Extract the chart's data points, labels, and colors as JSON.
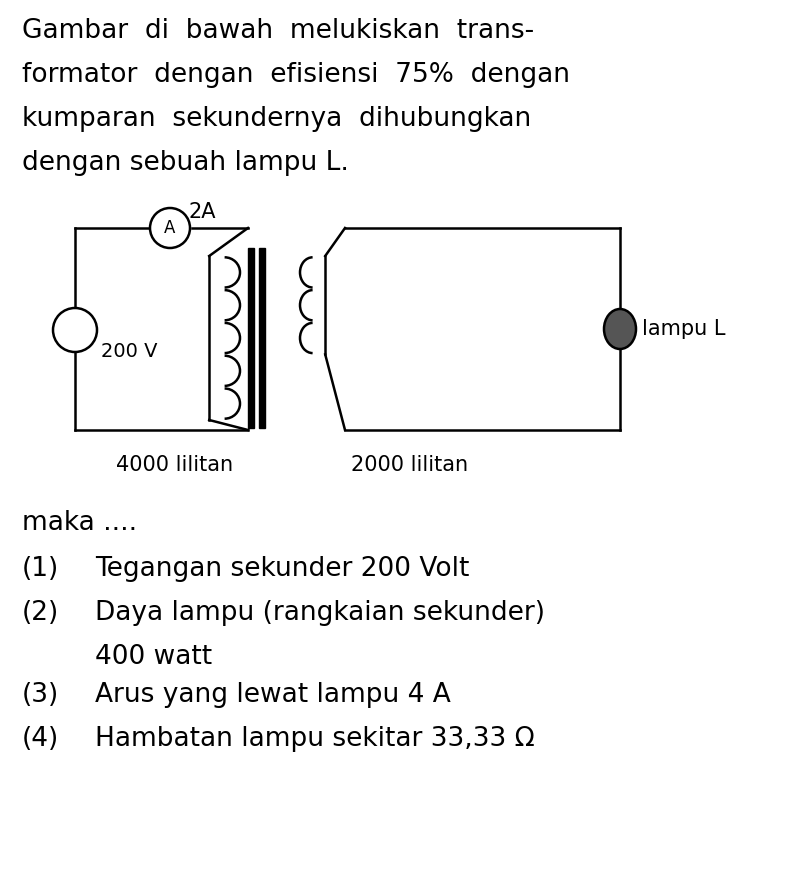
{
  "bg_color": "#ffffff",
  "text_color": "#000000",
  "current_label": "2A",
  "voltage_label": "200 V",
  "primary_turns": "4000 lilitan",
  "secondary_turns": "2000 lilitan",
  "lamp_label": "lampu L",
  "maka_text": "maka ....",
  "title_lines": [
    "Gambar  di  bawah  melukiskan  trans-",
    "formator  dengan  efisiensi  75%  dengan",
    "kumparan  sekundernya  dihubungkan",
    "dengan sebuah lampu L."
  ],
  "items": [
    [
      "(1)",
      "Tegangan sekunder 200 Volt",
      false
    ],
    [
      "(2)",
      "Daya lampu (rangkaian sekunder)",
      true
    ],
    [
      "",
      "400 watt",
      false
    ],
    [
      "(3)",
      "Arus yang lewat lampu 4 A",
      false
    ],
    [
      "(4)",
      "Hambatan lampu sekitar 33,33 Ω",
      false
    ]
  ],
  "font_size_title": 19,
  "font_size_body": 19,
  "font_size_diagram": 14,
  "lw": 1.8
}
